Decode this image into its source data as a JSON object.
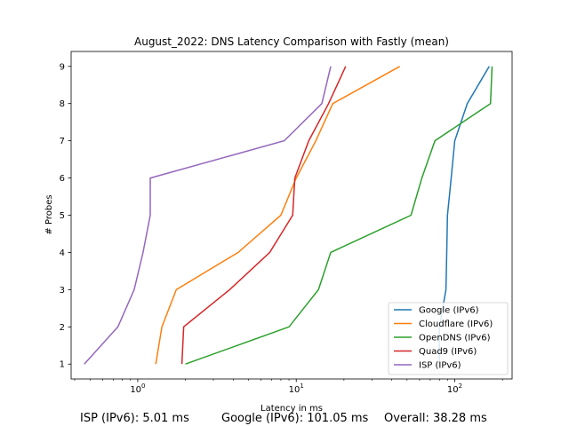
{
  "chart_data": {
    "type": "line",
    "title": "August_2022: DNS Latency Comparison with Fastly (mean)",
    "xlabel": "Latency in ms",
    "ylabel": "# Probes",
    "xscale": "log",
    "xlim": [
      0.38,
      230
    ],
    "ylim": [
      0.6,
      9.4
    ],
    "x_ticks": [
      {
        "value": 1,
        "label": "10^0"
      },
      {
        "value": 10,
        "label": "10^1"
      },
      {
        "value": 100,
        "label": "10^2"
      }
    ],
    "y_ticks": [
      1,
      2,
      3,
      4,
      5,
      6,
      7,
      8,
      9
    ],
    "grid": false,
    "legend_position": "lower-right",
    "series": [
      {
        "name": "Google (IPv6)",
        "color": "#1f77b4",
        "x": [
          80,
          80,
          88,
          89,
          90,
          95,
          100,
          120,
          165
        ],
        "y": [
          1,
          2,
          3,
          4,
          5,
          6,
          7,
          8,
          9
        ]
      },
      {
        "name": "Cloudflare (IPv6)",
        "color": "#ff7f0e",
        "x": [
          1.3,
          1.42,
          1.75,
          4.3,
          8.0,
          10.0,
          13.3,
          17.0,
          45.0
        ],
        "y": [
          1,
          2,
          3,
          4,
          5,
          6,
          7,
          8,
          9
        ]
      },
      {
        "name": "OpenDNS (IPv6)",
        "color": "#2ca02c",
        "x": [
          2.0,
          9.0,
          13.8,
          16.5,
          53.0,
          62.0,
          75.0,
          168.0,
          172.0
        ],
        "y": [
          1,
          2,
          3,
          4,
          5,
          6,
          7,
          8,
          9
        ]
      },
      {
        "name": "Quad9 (IPv6)",
        "color": "#d62728",
        "x": [
          1.9,
          1.95,
          3.8,
          6.8,
          9.5,
          9.8,
          12.0,
          16.0,
          20.5
        ],
        "y": [
          1,
          2,
          3,
          4,
          5,
          6,
          7,
          8,
          9
        ]
      },
      {
        "name": "ISP (IPv6)",
        "color": "#9467bd",
        "x": [
          0.46,
          0.75,
          0.95,
          1.08,
          1.2,
          1.2,
          8.4,
          14.5,
          16.5
        ],
        "y": [
          1,
          2,
          3,
          4,
          5,
          6,
          7,
          8,
          9
        ]
      }
    ]
  },
  "footer": {
    "isp": "ISP (IPv6): 5.01 ms",
    "google": "Google (IPv6): 101.05 ms",
    "overall": "Overall: 38.28 ms"
  }
}
